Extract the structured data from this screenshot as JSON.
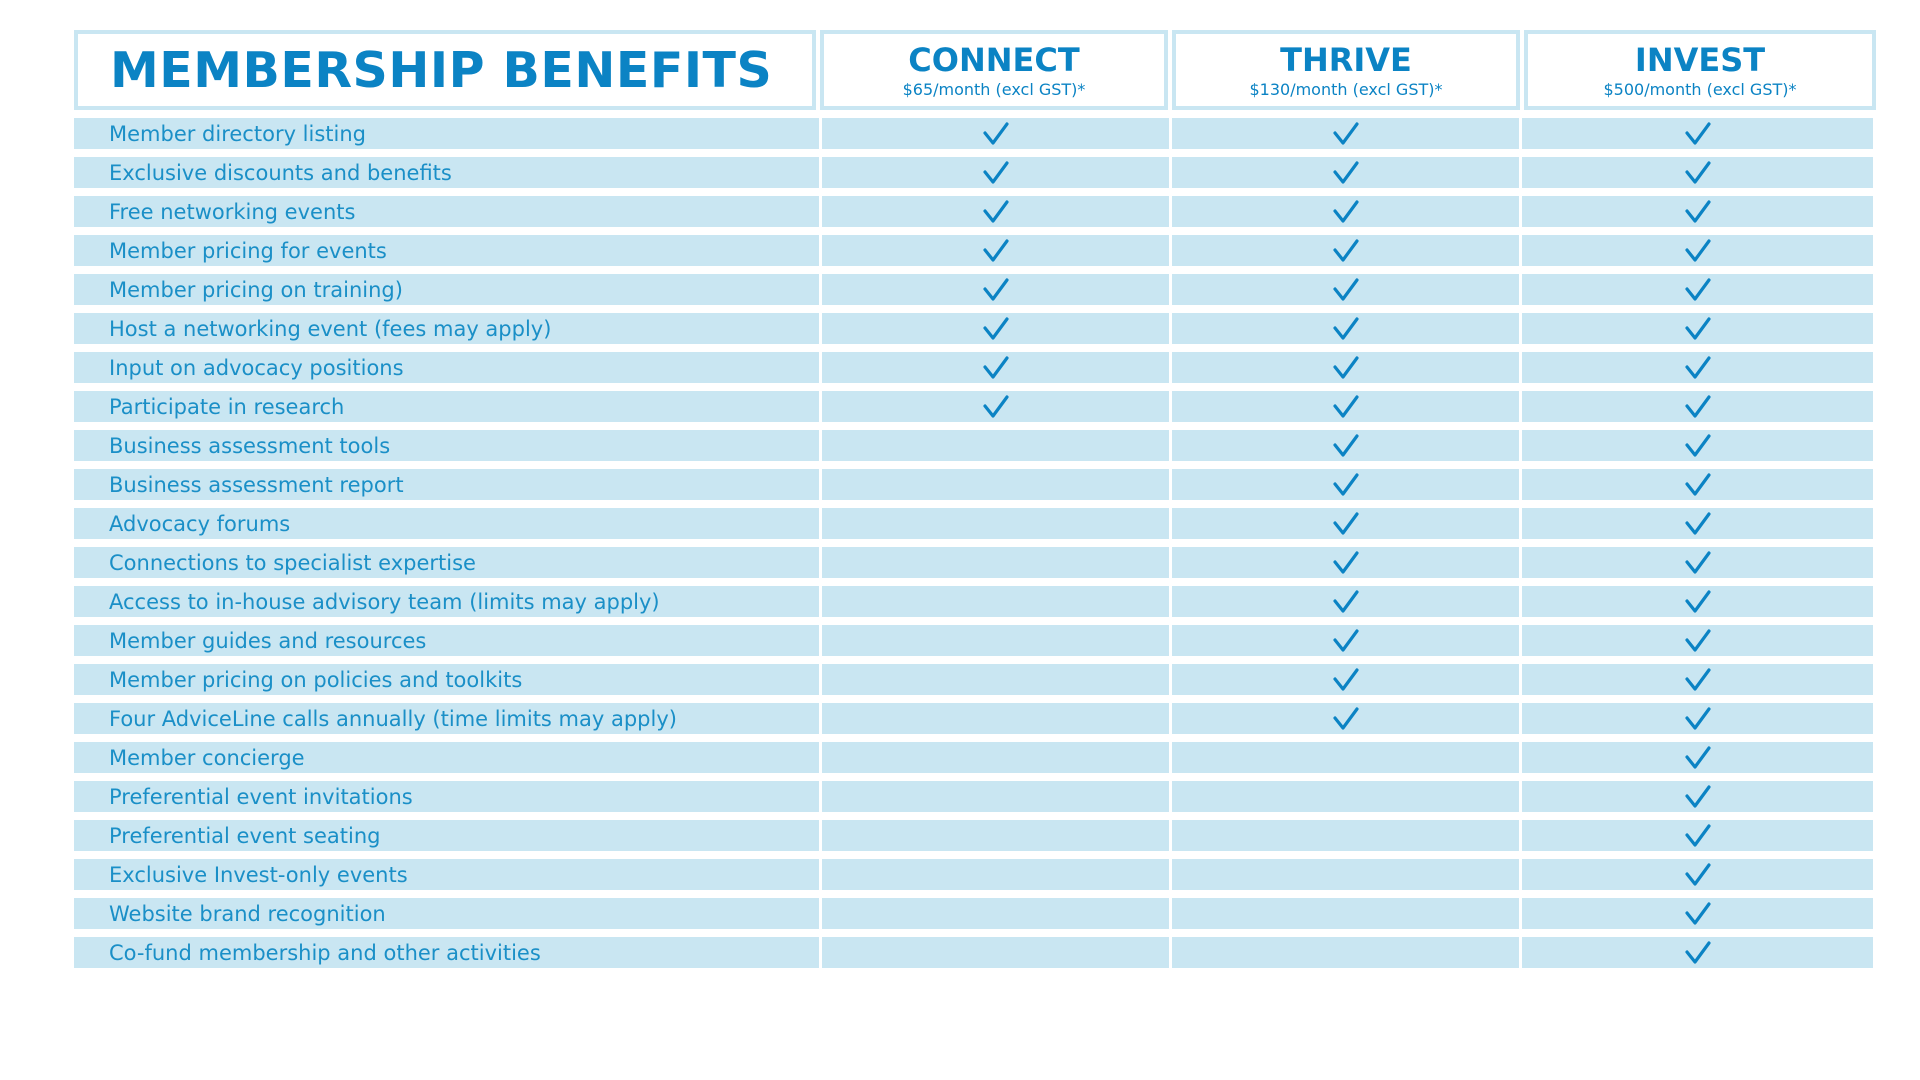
{
  "title": "MEMBERSHIP BENEFITS",
  "tiers": [
    {
      "name": "CONNECT",
      "price": "$65/month (excl GST)*"
    },
    {
      "name": "THRIVE",
      "price": "$130/month (excl GST)*"
    },
    {
      "name": "INVEST",
      "price": "$500/month (excl GST)*"
    }
  ],
  "check_icon": "checkmark-icon",
  "colors": {
    "accent": "#0b83c4",
    "row_bg": "#c9e6f2",
    "text": "#1a8fc7"
  },
  "benefits": [
    {
      "label": "Member directory listing",
      "included": [
        true,
        true,
        true
      ]
    },
    {
      "label": "Exclusive discounts and benefits",
      "included": [
        true,
        true,
        true
      ]
    },
    {
      "label": "Free networking events",
      "included": [
        true,
        true,
        true
      ]
    },
    {
      "label": "Member pricing for events",
      "included": [
        true,
        true,
        true
      ]
    },
    {
      "label": "Member pricing on training)",
      "included": [
        true,
        true,
        true
      ]
    },
    {
      "label": "Host a networking event (fees may apply)",
      "included": [
        true,
        true,
        true
      ]
    },
    {
      "label": "Input on advocacy positions",
      "included": [
        true,
        true,
        true
      ]
    },
    {
      "label": "Participate in research",
      "included": [
        true,
        true,
        true
      ]
    },
    {
      "label": "Business assessment tools",
      "included": [
        false,
        true,
        true
      ]
    },
    {
      "label": "Business assessment report",
      "included": [
        false,
        true,
        true
      ]
    },
    {
      "label": "Advocacy forums",
      "included": [
        false,
        true,
        true
      ]
    },
    {
      "label": "Connections to specialist expertise",
      "included": [
        false,
        true,
        true
      ]
    },
    {
      "label": "Access to in-house advisory team (limits may apply)",
      "included": [
        false,
        true,
        true
      ]
    },
    {
      "label": "Member guides and resources",
      "included": [
        false,
        true,
        true
      ]
    },
    {
      "label": "Member pricing on policies and toolkits",
      "included": [
        false,
        true,
        true
      ]
    },
    {
      "label": "Four AdviceLine calls annually (time limits may apply)",
      "included": [
        false,
        true,
        true
      ]
    },
    {
      "label": "Member concierge",
      "included": [
        false,
        false,
        true
      ]
    },
    {
      "label": "Preferential event invitations",
      "included": [
        false,
        false,
        true
      ]
    },
    {
      "label": "Preferential event seating",
      "included": [
        false,
        false,
        true
      ]
    },
    {
      "label": "Exclusive Invest-only events",
      "included": [
        false,
        false,
        true
      ]
    },
    {
      "label": "Website brand recognition",
      "included": [
        false,
        false,
        true
      ]
    },
    {
      "label": "Co-fund membership and other activities",
      "included": [
        false,
        false,
        true
      ]
    }
  ]
}
